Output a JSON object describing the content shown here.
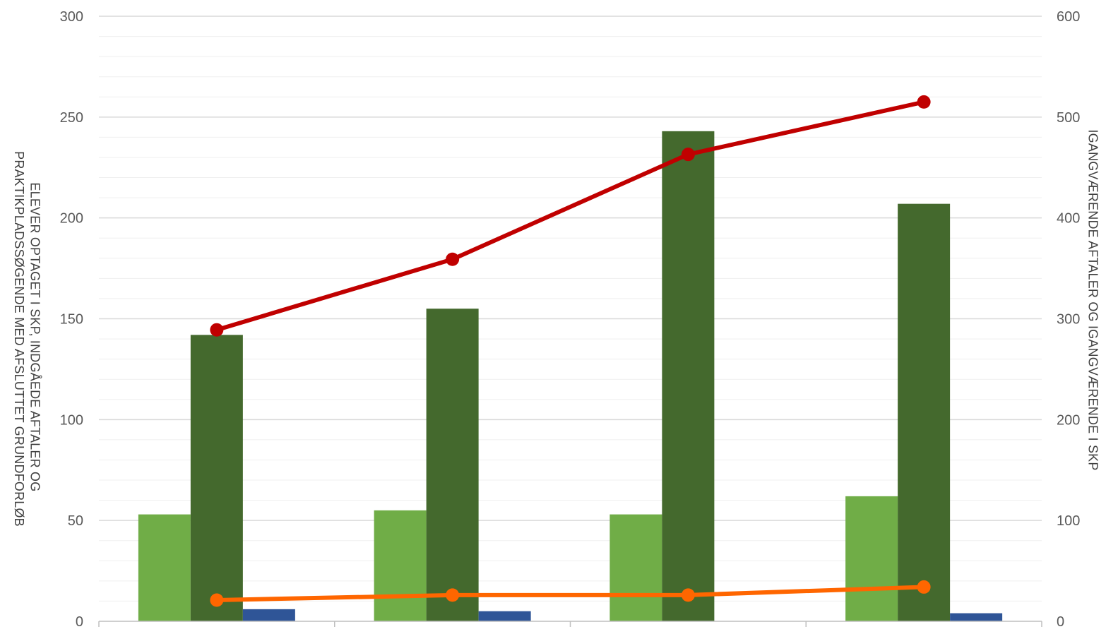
{
  "chart_data": {
    "type": "bar",
    "categories": [
      "",
      "",
      "",
      ""
    ],
    "y_left": {
      "label_lines": [
        "ELEVER OPTAGET I SKP, INDGÅEDE AFTALER OG",
        "PRAKTIKPLADSSØGENDE MED AFSLUTTET GRUNDFORLØB"
      ],
      "range": [
        0,
        300
      ],
      "ticks": [
        "0",
        "50",
        "100",
        "150",
        "200",
        "250",
        "300"
      ],
      "major_step": 50,
      "minor_step": 10
    },
    "y_right": {
      "label": "IGANGVÆRENDE AFTALER OG IGANGVÆRENDE I SKP",
      "range": [
        0,
        600
      ],
      "ticks": [
        "0",
        "100",
        "200",
        "300",
        "400",
        "500",
        "600"
      ]
    },
    "bar_series": [
      {
        "color": "#70ad47",
        "values": [
          53,
          55,
          53,
          62
        ]
      },
      {
        "color": "#44692d",
        "values": [
          142,
          155,
          243,
          207
        ]
      },
      {
        "color": "#2f5597",
        "values": [
          6,
          5,
          0,
          4
        ]
      }
    ],
    "line_series": [
      {
        "color": "#c00000",
        "axis": "right",
        "values": [
          289,
          359,
          463,
          515
        ]
      },
      {
        "color": "#ff6600",
        "axis": "right",
        "values": [
          21,
          26,
          26,
          34
        ]
      }
    ],
    "grid": true,
    "legend": "none"
  }
}
